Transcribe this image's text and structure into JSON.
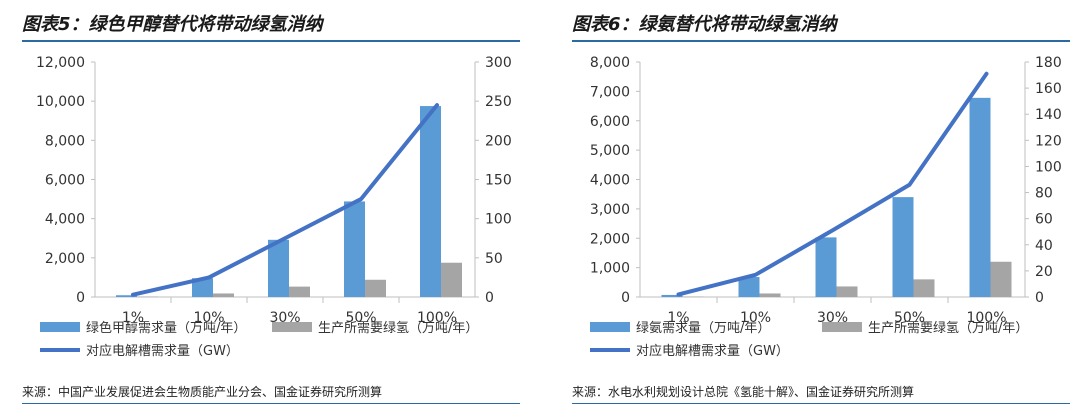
{
  "panels": [
    {
      "title": "图表5：绿色甲醇替代将带动绿氢消纳",
      "source": "来源：中国产业发展促进会生物质能产业分会、国金证券研究所测算"
    },
    {
      "title": "图表6：绿氨替代将带动绿氢消纳",
      "source": "来源：水电水利规划设计总院《氢能十解》、国金证券研究所测算"
    }
  ],
  "colors": {
    "bar_main": "#5b9bd5",
    "bar_secondary": "#a5a5a5",
    "line": "#4472c4",
    "rule": "#2b6aa3"
  },
  "chart_data": [
    {
      "type": "bar",
      "categories": [
        "1%",
        "10%",
        "30%",
        "50%",
        "100%"
      ],
      "series": [
        {
          "name": "绿色甲醇需求量（万吨/年）",
          "type": "bar",
          "axis": "left",
          "values": [
            90,
            960,
            2920,
            4880,
            9750
          ]
        },
        {
          "name": "生产所需要绿氢（万吨/年）",
          "type": "bar",
          "axis": "left",
          "values": [
            20,
            180,
            530,
            880,
            1750
          ]
        },
        {
          "name": "对应电解槽需求量（GW）",
          "type": "line",
          "axis": "right",
          "values": [
            3,
            25,
            75,
            125,
            245
          ]
        }
      ],
      "ylim": [
        0,
        12000
      ],
      "yticks": [
        "0",
        "2,000",
        "4,000",
        "6,000",
        "8,000",
        "10,000",
        "12,000"
      ],
      "y2lim": [
        0,
        300
      ],
      "y2ticks": [
        "0",
        "50",
        "100",
        "150",
        "200",
        "250",
        "300"
      ],
      "grid": false,
      "legend": "bottom"
    },
    {
      "type": "bar",
      "categories": [
        "1%",
        "10%",
        "30%",
        "50%",
        "100%"
      ],
      "series": [
        {
          "name": "绿氨需求量（万吨/年）",
          "type": "bar",
          "axis": "left",
          "values": [
            70,
            680,
            2030,
            3400,
            6780
          ]
        },
        {
          "name": "生产所需要绿氢（万吨/年）",
          "type": "bar",
          "axis": "left",
          "values": [
            15,
            120,
            360,
            600,
            1200
          ]
        },
        {
          "name": "对应电解槽需求量（GW）",
          "type": "line",
          "axis": "right",
          "values": [
            2,
            17,
            51,
            86,
            171
          ]
        }
      ],
      "ylim": [
        0,
        8000
      ],
      "yticks": [
        "0",
        "1,000",
        "2,000",
        "3,000",
        "4,000",
        "5,000",
        "6,000",
        "7,000",
        "8,000"
      ],
      "y2lim": [
        0,
        180
      ],
      "y2ticks": [
        "0",
        "20",
        "40",
        "60",
        "80",
        "100",
        "120",
        "140",
        "160",
        "180"
      ],
      "grid": false,
      "legend": "bottom"
    }
  ]
}
